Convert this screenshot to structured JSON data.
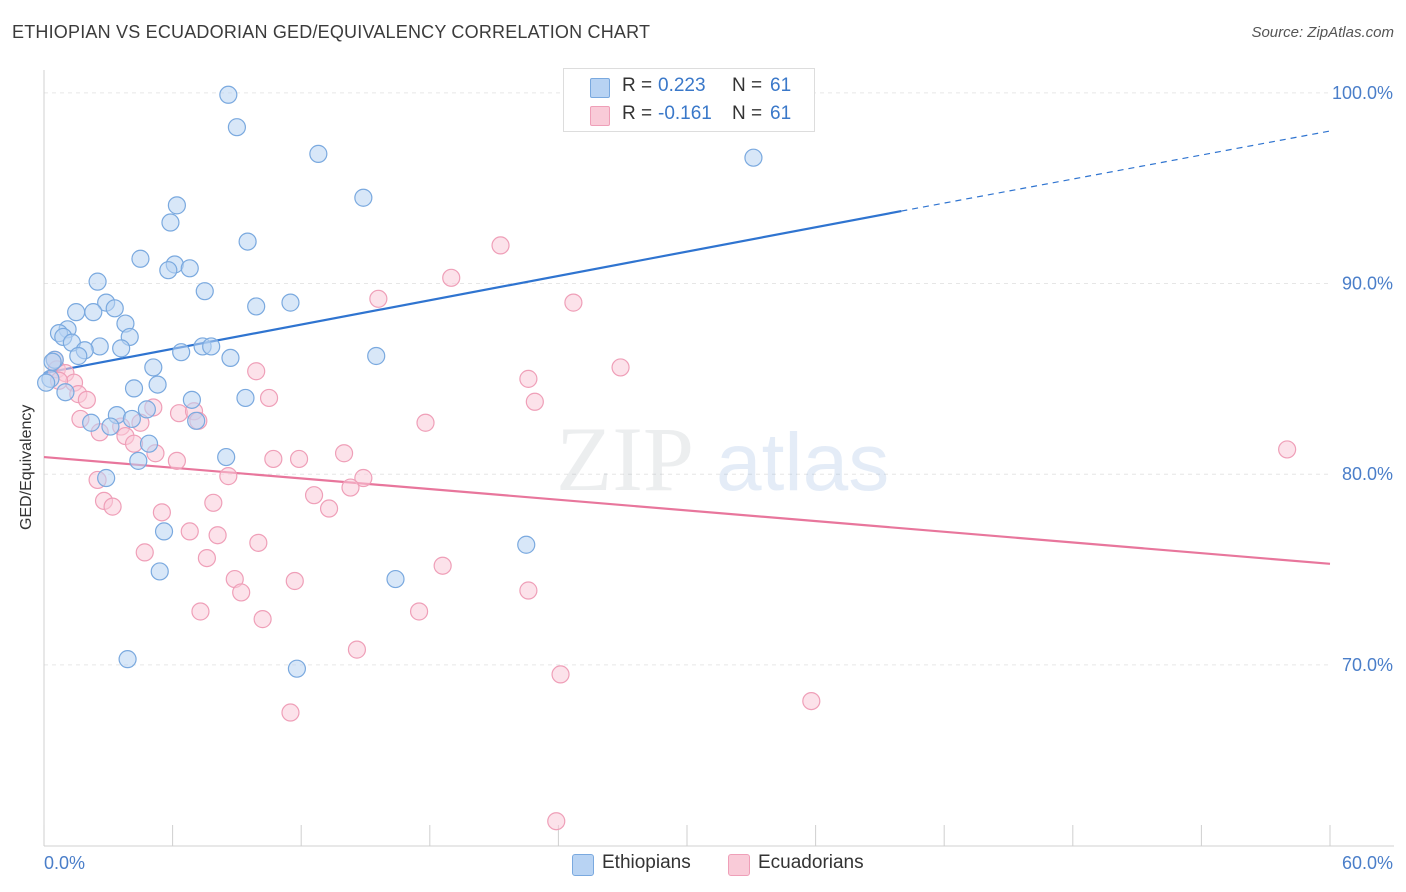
{
  "header": {
    "title": "ETHIOPIAN VS ECUADORIAN GED/EQUIVALENCY CORRELATION CHART",
    "source": "Source: ZipAtlas.com"
  },
  "watermark": {
    "zip": "ZIP",
    "atlas": "atlas"
  },
  "legend_top": {
    "rows": [
      {
        "r_label": "R =",
        "r_value": "0.223",
        "n_label": "N =",
        "n_value": "61"
      },
      {
        "r_label": "R =",
        "r_value": "-0.161",
        "n_label": "N =",
        "n_value": "61"
      }
    ]
  },
  "legend_bottom": {
    "items": [
      {
        "label": "Ethiopians"
      },
      {
        "label": "Ecuadorians"
      }
    ]
  },
  "colors": {
    "ethiopians_fill": "#b8d3f3",
    "ethiopians_stroke": "#7aa9df",
    "ethiopians_line": "#2f74d0",
    "ecuadorians_fill": "#f9cbd8",
    "ecuadorians_stroke": "#ef9fb8",
    "ecuadorians_line": "#e8769c",
    "tick_label": "#4a7ec9",
    "grid": "#e6e6e6"
  },
  "chart_data": {
    "type": "scatter",
    "title": "ETHIOPIAN VS ECUADORIAN GED/EQUIVALENCY CORRELATION CHART",
    "xlabel": "",
    "ylabel": "GED/Equivalency",
    "xlim": [
      0,
      60
    ],
    "ylim": [
      60.5,
      101.2
    ],
    "x_tick_labels": [
      "0.0%",
      "60.0%"
    ],
    "y_ticks": [
      70,
      80,
      90,
      100
    ],
    "y_tick_labels": [
      "70.0%",
      "80.0%",
      "90.0%",
      "100.0%"
    ],
    "grid": true,
    "legend_position": "top-center",
    "series": [
      {
        "name": "Ethiopians",
        "R": 0.223,
        "N": 61,
        "trend": {
          "x0": 0,
          "y0": 85.3,
          "x1": 40,
          "y1": 93.8,
          "dashed_to_x": 60,
          "dashed_y": 98.0
        },
        "points": [
          [
            8.6,
            99.9
          ],
          [
            9.0,
            98.2
          ],
          [
            12.8,
            96.8
          ],
          [
            33.1,
            96.6
          ],
          [
            14.9,
            94.5
          ],
          [
            6.2,
            94.1
          ],
          [
            5.9,
            93.2
          ],
          [
            9.5,
            92.2
          ],
          [
            4.5,
            91.3
          ],
          [
            6.1,
            91.0
          ],
          [
            5.8,
            90.7
          ],
          [
            6.8,
            90.8
          ],
          [
            2.5,
            90.1
          ],
          [
            7.5,
            89.6
          ],
          [
            2.9,
            89.0
          ],
          [
            11.5,
            89.0
          ],
          [
            3.3,
            88.7
          ],
          [
            9.9,
            88.8
          ],
          [
            2.3,
            88.5
          ],
          [
            1.5,
            88.5
          ],
          [
            3.8,
            87.9
          ],
          [
            1.1,
            87.6
          ],
          [
            0.7,
            87.4
          ],
          [
            0.9,
            87.2
          ],
          [
            4.0,
            87.2
          ],
          [
            1.3,
            86.9
          ],
          [
            2.6,
            86.7
          ],
          [
            7.4,
            86.7
          ],
          [
            7.8,
            86.7
          ],
          [
            3.6,
            86.6
          ],
          [
            1.9,
            86.5
          ],
          [
            1.6,
            86.2
          ],
          [
            6.4,
            86.4
          ],
          [
            8.7,
            86.1
          ],
          [
            15.5,
            86.2
          ],
          [
            0.5,
            86.0
          ],
          [
            0.4,
            85.9
          ],
          [
            5.1,
            85.6
          ],
          [
            0.3,
            85.0
          ],
          [
            4.2,
            84.5
          ],
          [
            5.3,
            84.7
          ],
          [
            0.1,
            84.8
          ],
          [
            9.4,
            84.0
          ],
          [
            6.9,
            83.9
          ],
          [
            4.8,
            83.4
          ],
          [
            3.4,
            83.1
          ],
          [
            4.1,
            82.9
          ],
          [
            2.2,
            82.7
          ],
          [
            7.1,
            82.8
          ],
          [
            4.9,
            81.6
          ],
          [
            4.4,
            80.7
          ],
          [
            8.5,
            80.9
          ],
          [
            2.9,
            79.8
          ],
          [
            22.5,
            76.3
          ],
          [
            5.6,
            77.0
          ],
          [
            5.4,
            74.9
          ],
          [
            16.4,
            74.5
          ],
          [
            3.9,
            70.3
          ],
          [
            11.8,
            69.8
          ],
          [
            3.1,
            82.5
          ],
          [
            1.0,
            84.3
          ]
        ]
      },
      {
        "name": "Ecuadorians",
        "R": -0.161,
        "N": 61,
        "trend": {
          "x0": 0,
          "y0": 80.9,
          "x1": 60,
          "y1": 75.3
        },
        "points": [
          [
            21.3,
            92.0
          ],
          [
            19.0,
            90.3
          ],
          [
            15.6,
            89.2
          ],
          [
            24.7,
            89.0
          ],
          [
            0.5,
            86.0
          ],
          [
            26.9,
            85.6
          ],
          [
            0.6,
            85.5
          ],
          [
            1.0,
            85.3
          ],
          [
            9.9,
            85.4
          ],
          [
            22.6,
            85.0
          ],
          [
            1.4,
            84.8
          ],
          [
            0.7,
            84.9
          ],
          [
            1.6,
            84.2
          ],
          [
            2.0,
            83.9
          ],
          [
            10.5,
            84.0
          ],
          [
            22.9,
            83.8
          ],
          [
            5.1,
            83.5
          ],
          [
            6.3,
            83.2
          ],
          [
            7.0,
            83.3
          ],
          [
            1.7,
            82.9
          ],
          [
            4.5,
            82.7
          ],
          [
            7.2,
            82.8
          ],
          [
            17.8,
            82.7
          ],
          [
            3.6,
            82.5
          ],
          [
            2.6,
            82.2
          ],
          [
            3.8,
            82.0
          ],
          [
            4.2,
            81.6
          ],
          [
            5.2,
            81.1
          ],
          [
            14.0,
            81.1
          ],
          [
            6.2,
            80.7
          ],
          [
            10.7,
            80.8
          ],
          [
            11.9,
            80.8
          ],
          [
            58.0,
            81.3
          ],
          [
            8.6,
            79.9
          ],
          [
            14.9,
            79.8
          ],
          [
            2.5,
            79.7
          ],
          [
            14.3,
            79.3
          ],
          [
            12.6,
            78.9
          ],
          [
            7.9,
            78.5
          ],
          [
            2.8,
            78.6
          ],
          [
            3.2,
            78.3
          ],
          [
            13.3,
            78.2
          ],
          [
            5.5,
            78.0
          ],
          [
            6.8,
            77.0
          ],
          [
            8.1,
            76.8
          ],
          [
            10.0,
            76.4
          ],
          [
            4.7,
            75.9
          ],
          [
            7.6,
            75.6
          ],
          [
            18.6,
            75.2
          ],
          [
            8.9,
            74.5
          ],
          [
            11.7,
            74.4
          ],
          [
            22.6,
            73.9
          ],
          [
            9.2,
            73.8
          ],
          [
            7.3,
            72.8
          ],
          [
            17.5,
            72.8
          ],
          [
            10.2,
            72.4
          ],
          [
            14.6,
            70.8
          ],
          [
            24.1,
            69.5
          ],
          [
            35.8,
            68.1
          ],
          [
            11.5,
            67.5
          ],
          [
            23.9,
            61.8
          ]
        ]
      }
    ]
  }
}
